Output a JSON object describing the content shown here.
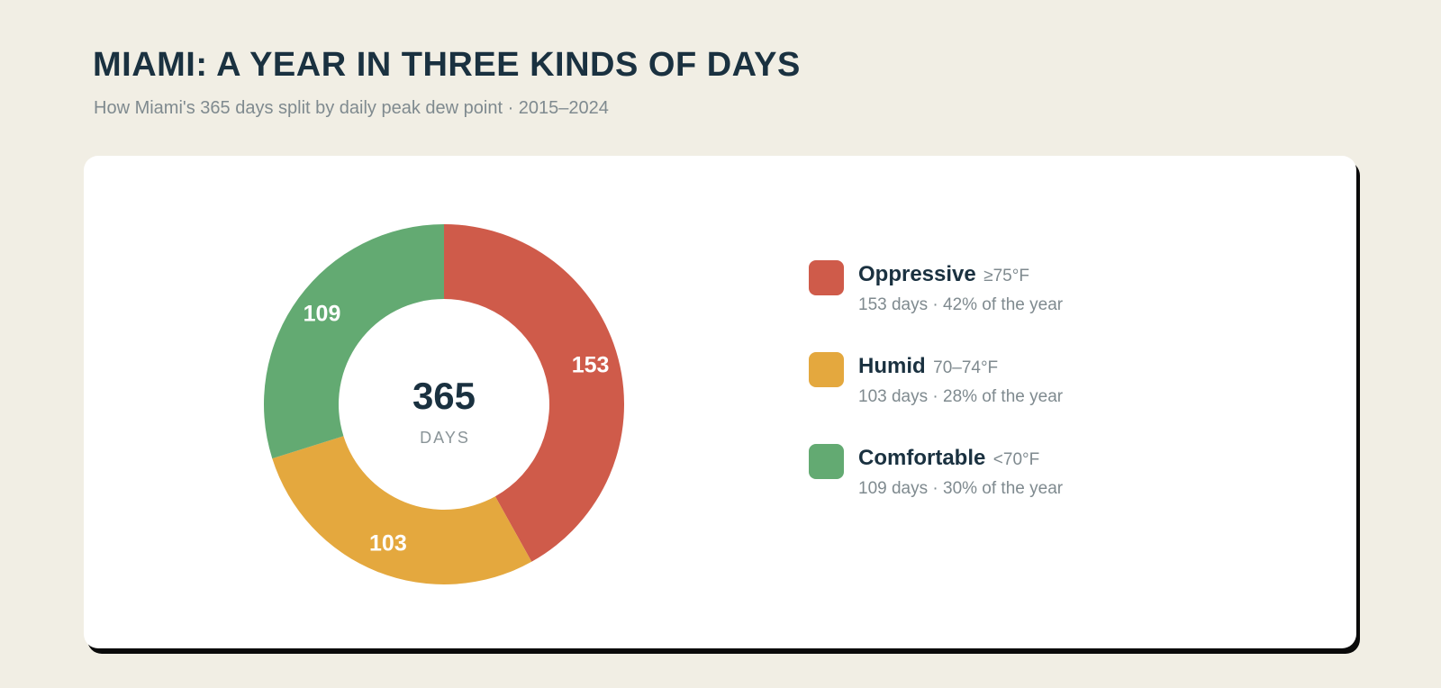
{
  "title": "MIAMI: A YEAR IN THREE KINDS OF DAYS",
  "subtitle": "How Miami's 365 days split by daily peak dew point · 2015–2024",
  "chart_data": {
    "type": "pie",
    "style": "donut",
    "total": 365,
    "center_value": "365",
    "center_label": "DAYS",
    "categories": [
      "Oppressive",
      "Humid",
      "Comfortable"
    ],
    "values": [
      153,
      103,
      109
    ],
    "slices": [
      {
        "name": "Oppressive",
        "value": 153,
        "value_label": "153",
        "range": "≥75°F",
        "detail": "153 days · 42% of the year",
        "color": "#cf5b4a"
      },
      {
        "name": "Humid",
        "value": 103,
        "value_label": "103",
        "range": "70–74°F",
        "detail": "103 days · 28% of the year",
        "color": "#e4a83e"
      },
      {
        "name": "Comfortable",
        "value": 109,
        "value_label": "109",
        "range": "<70°F",
        "detail": "109 days · 30% of the year",
        "color": "#63aa72"
      }
    ],
    "start_angle": "12 o'clock",
    "direction": "clockwise",
    "legend_position": "right"
  }
}
